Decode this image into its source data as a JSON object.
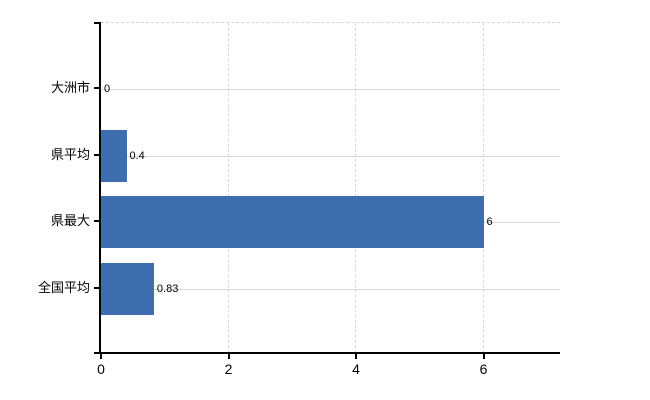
{
  "chart_data": {
    "type": "bar",
    "orientation": "horizontal",
    "title": "",
    "categories": [
      "大洲市",
      "県平均",
      "県最大",
      "全国平均"
    ],
    "values": [
      0,
      0.4,
      6,
      0.83
    ],
    "value_labels": [
      "0",
      "0.4",
      "6",
      "0.83"
    ],
    "xticks": [
      0,
      2,
      4,
      6
    ],
    "xlim": [
      0,
      7.2
    ],
    "xlabel": "",
    "ylabel": "",
    "grid": true,
    "legend": false,
    "colors": {
      "bar": "#3e6eb0",
      "gridline_horizontal": "#d5dcd5",
      "gridline_vertical_dashed": "#d9d6dc",
      "axis": "#000000",
      "text": "#000000",
      "background": "#ffffff"
    }
  }
}
